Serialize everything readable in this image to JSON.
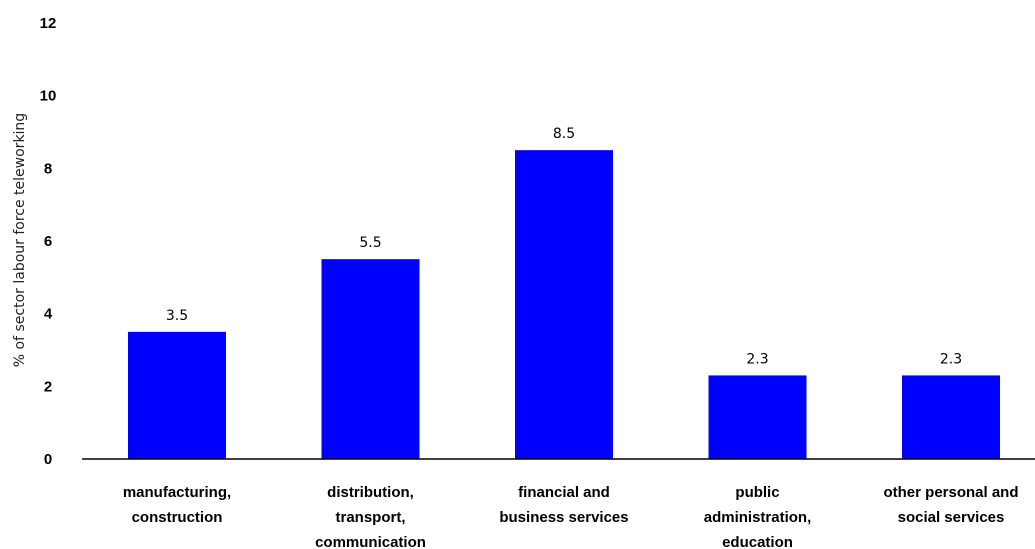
{
  "chart_data": {
    "type": "bar",
    "title": "",
    "xlabel": "",
    "ylabel": "% of sector labour force teleworking",
    "ylim": [
      0,
      12
    ],
    "yticks": [
      "0",
      "2",
      "4",
      "6",
      "8",
      "10",
      "12"
    ],
    "grid": false,
    "bar_color": "#0000ff",
    "categories": [
      [
        "manufacturing,",
        "construction"
      ],
      [
        "distribution,",
        "transport,",
        "communication"
      ],
      [
        "financial and",
        "business services"
      ],
      [
        "public",
        "administration,",
        "education"
      ],
      [
        "other personal and",
        "social services"
      ]
    ],
    "values": [
      3.5,
      5.5,
      8.5,
      2.3,
      2.3
    ],
    "data_labels": [
      "3.5",
      "5.5",
      "8.5",
      "2.3",
      "2.3"
    ]
  }
}
